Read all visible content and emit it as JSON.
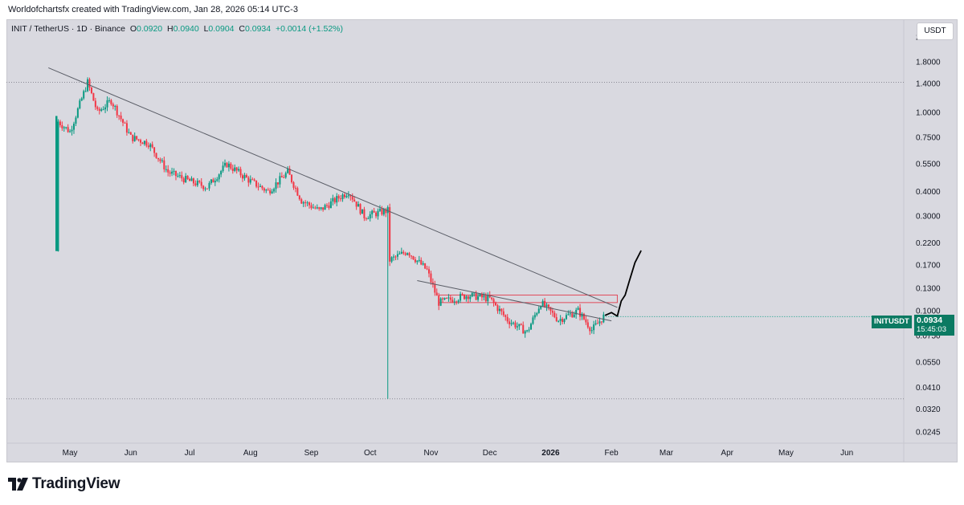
{
  "header": {
    "credit": "Worldofchartsfx created with TradingView.com, Jan 28, 2026 05:14 UTC-3"
  },
  "legend": {
    "symbol": "INIT / TetherUS · 1D · Binance",
    "o_label": "O",
    "o": "0.0920",
    "h_label": "H",
    "h": "0.0940",
    "l_label": "L",
    "l": "0.0904",
    "c_label": "C",
    "c": "0.0934",
    "change": "+0.0014 (+1.52%)"
  },
  "currency_button": "USDT",
  "last_price": {
    "symbol": "INITUSDT",
    "price": "0.0934",
    "countdown": "15:45:03"
  },
  "brand": "TradingView",
  "colors": {
    "up": "#089981",
    "down": "#f23645",
    "tag": "#0b7a62",
    "trendline": "#5a5d66",
    "zone": "#e04a5a",
    "projection": "#000000"
  },
  "chart_data": {
    "type": "candlestick",
    "title": "INIT / TetherUS · 1D · Binance",
    "y_scale": "log",
    "ylim": [
      0.0215,
      2.95
    ],
    "y_ticks": [
      "2.4000",
      "1.8000",
      "1.4000",
      "1.0000",
      "0.7500",
      "0.5500",
      "0.4000",
      "0.3000",
      "0.2200",
      "0.1700",
      "0.1300",
      "0.1000",
      "0.0750",
      "0.0550",
      "0.0410",
      "0.0320",
      "0.0245"
    ],
    "x_labels": [
      "May",
      "Jun",
      "Jul",
      "Aug",
      "Sep",
      "Oct",
      "Nov",
      "Dec",
      "2026",
      "Feb",
      "Mar",
      "Apr",
      "May",
      "Jun"
    ],
    "x_range": [
      "2025-04-24",
      "2026-06-30"
    ],
    "price_path": [
      [
        "2025-04-24",
        0.2
      ],
      [
        "2025-04-25",
        0.9
      ],
      [
        "2025-05-01",
        0.8
      ],
      [
        "2025-05-10",
        1.42
      ],
      [
        "2025-05-15",
        1.0
      ],
      [
        "2025-05-22",
        1.15
      ],
      [
        "2025-06-01",
        0.75
      ],
      [
        "2025-06-10",
        0.7
      ],
      [
        "2025-06-20",
        0.5
      ],
      [
        "2025-07-01",
        0.45
      ],
      [
        "2025-07-10",
        0.42
      ],
      [
        "2025-07-20",
        0.55
      ],
      [
        "2025-08-01",
        0.45
      ],
      [
        "2025-08-10",
        0.4
      ],
      [
        "2025-08-20",
        0.5
      ],
      [
        "2025-08-27",
        0.36
      ],
      [
        "2025-09-05",
        0.32
      ],
      [
        "2025-09-20",
        0.4
      ],
      [
        "2025-09-28",
        0.3
      ],
      [
        "2025-10-10",
        0.32
      ],
      [
        "2025-10-11",
        0.18
      ],
      [
        "2025-10-20",
        0.2
      ],
      [
        "2025-10-30",
        0.16
      ],
      [
        "2025-11-05",
        0.11
      ],
      [
        "2025-11-20",
        0.12
      ],
      [
        "2025-12-01",
        0.115
      ],
      [
        "2025-12-10",
        0.09
      ],
      [
        "2025-12-20",
        0.078
      ],
      [
        "2025-12-27",
        0.11
      ],
      [
        "2026-01-05",
        0.09
      ],
      [
        "2026-01-15",
        0.1
      ],
      [
        "2026-01-22",
        0.08
      ],
      [
        "2026-01-28",
        0.0934
      ]
    ],
    "wicks": [
      {
        "date": "2025-04-24",
        "high": 0.96,
        "low": 0.2
      },
      {
        "date": "2025-10-10",
        "high": 0.34,
        "low": 0.036
      }
    ],
    "last_candle": {
      "open": 0.092,
      "high": 0.094,
      "low": 0.0904,
      "close": 0.0934,
      "change": 0.0014,
      "change_pct": 1.52
    },
    "horizontal_levels": [
      1.42,
      0.036
    ],
    "trendlines": [
      {
        "from": [
          "2025-04-20",
          1.68
        ],
        "to": [
          "2026-02-04",
          0.104
        ]
      },
      {
        "from": [
          "2025-10-25",
          0.142
        ],
        "to": [
          "2026-02-01",
          0.089
        ]
      }
    ],
    "resistance_zone": {
      "from": "2025-11-05",
      "to": "2026-02-04",
      "low": 0.11,
      "high": 0.12
    },
    "projection": [
      [
        "2026-01-29",
        0.095
      ],
      [
        "2026-02-01",
        0.098
      ],
      [
        "2026-02-04",
        0.094
      ],
      [
        "2026-02-06",
        0.112
      ],
      [
        "2026-02-08",
        0.12
      ],
      [
        "2026-02-10",
        0.14
      ],
      [
        "2026-02-13",
        0.175
      ],
      [
        "2026-02-16",
        0.2
      ]
    ]
  }
}
